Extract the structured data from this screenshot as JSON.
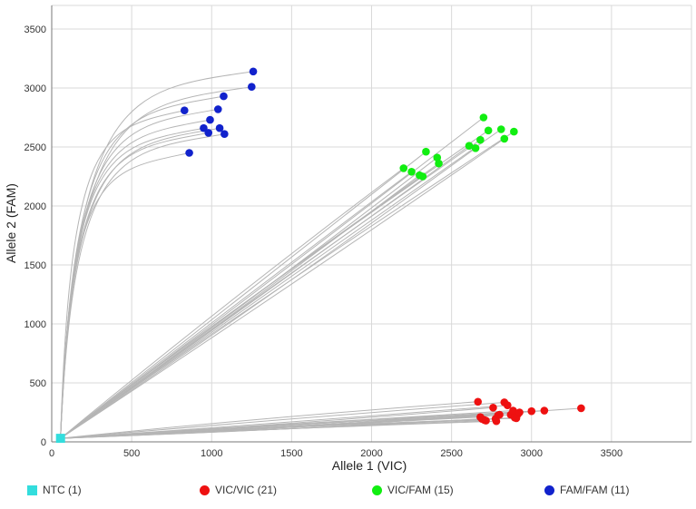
{
  "chart_data": {
    "type": "scatter",
    "xlabel": "Allele 1 (VIC)",
    "ylabel": "Allele 2 (FAM)",
    "xlim": [
      0,
      4000
    ],
    "ylim": [
      0,
      3700
    ],
    "x_ticks": [
      0,
      500,
      1000,
      1500,
      2000,
      2500,
      3000,
      3500
    ],
    "y_ticks": [
      0,
      500,
      1000,
      1500,
      2000,
      2500,
      3000,
      3500
    ],
    "grid": true,
    "legend_position": "bottom",
    "trace_color": "#b5b5b5",
    "series": [
      {
        "name": "NTC (1)",
        "color": "#33dddd",
        "marker": "square",
        "points": [
          [
            55,
            30
          ]
        ]
      },
      {
        "name": "VIC/VIC (21)",
        "color": "#ee1111",
        "marker": "circle",
        "points": [
          [
            2665,
            340
          ],
          [
            2680,
            210
          ],
          [
            2690,
            195
          ],
          [
            2705,
            185
          ],
          [
            2715,
            180
          ],
          [
            2760,
            290
          ],
          [
            2775,
            195
          ],
          [
            2790,
            225
          ],
          [
            2800,
            230
          ],
          [
            2830,
            335
          ],
          [
            2850,
            310
          ],
          [
            2870,
            230
          ],
          [
            2885,
            265
          ],
          [
            2895,
            205
          ],
          [
            2905,
            200
          ],
          [
            2915,
            235
          ],
          [
            2925,
            250
          ],
          [
            3000,
            260
          ],
          [
            3080,
            265
          ],
          [
            3310,
            285
          ],
          [
            2780,
            175
          ]
        ]
      },
      {
        "name": "VIC/FAM (15)",
        "color": "#11ee11",
        "marker": "circle",
        "points": [
          [
            2200,
            2320
          ],
          [
            2250,
            2290
          ],
          [
            2300,
            2260
          ],
          [
            2320,
            2250
          ],
          [
            2340,
            2460
          ],
          [
            2410,
            2410
          ],
          [
            2420,
            2360
          ],
          [
            2610,
            2510
          ],
          [
            2650,
            2490
          ],
          [
            2680,
            2560
          ],
          [
            2700,
            2750
          ],
          [
            2730,
            2640
          ],
          [
            2810,
            2650
          ],
          [
            2830,
            2570
          ],
          [
            2890,
            2630
          ]
        ]
      },
      {
        "name": "FAM/FAM (11)",
        "color": "#1122cc",
        "marker": "circle",
        "points": [
          [
            830,
            2810
          ],
          [
            860,
            2450
          ],
          [
            950,
            2660
          ],
          [
            980,
            2620
          ],
          [
            990,
            2730
          ],
          [
            1040,
            2820
          ],
          [
            1050,
            2660
          ],
          [
            1075,
            2930
          ],
          [
            1080,
            2610
          ],
          [
            1250,
            3010
          ],
          [
            1260,
            3140
          ]
        ]
      }
    ]
  }
}
